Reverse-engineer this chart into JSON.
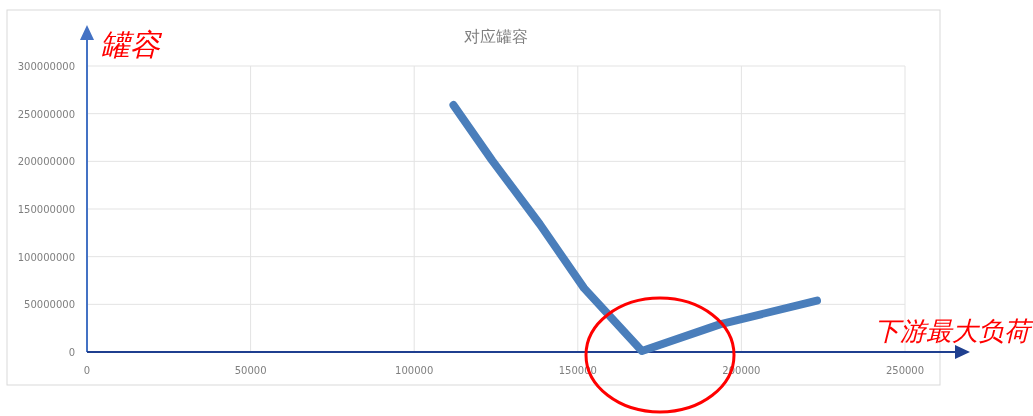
{
  "chart_data": {
    "type": "line",
    "title": "对应罐容",
    "xlabel": "下游最大负荷",
    "ylabel": "罐容",
    "x": [
      112000,
      123800,
      138400,
      151900,
      169600,
      193400,
      223100
    ],
    "values": [
      259000000,
      201000000,
      134000000,
      67000000,
      1000000,
      29000000,
      54000000
    ],
    "color": "#4a7ebb",
    "xlim": [
      0,
      250000
    ],
    "ylim": [
      0,
      300000000
    ],
    "xticks": [
      0,
      50000,
      100000,
      150000,
      200000,
      250000
    ],
    "yticks": [
      0,
      50000000,
      100000000,
      150000000,
      200000000,
      250000000,
      300000000
    ],
    "grid": true
  }
}
